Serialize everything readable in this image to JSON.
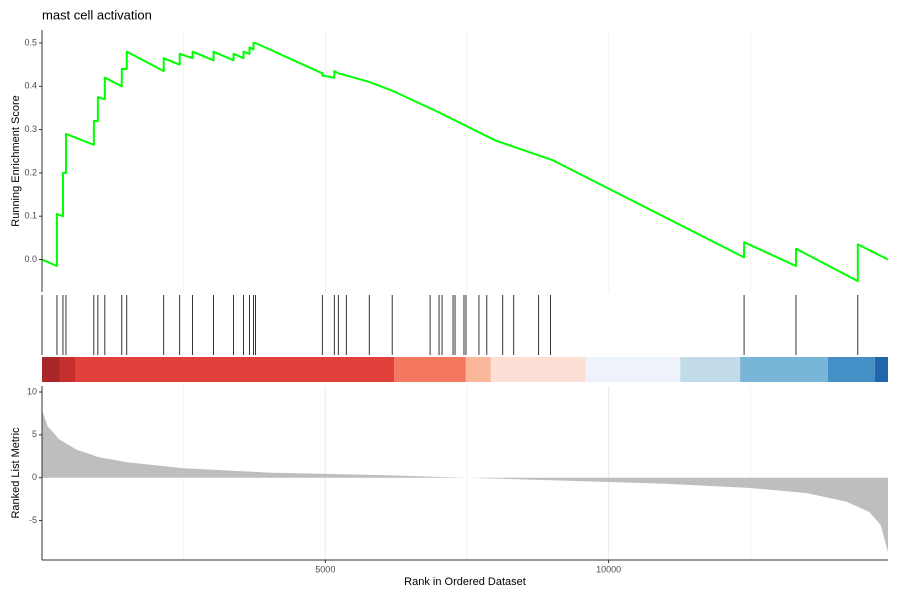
{
  "chart_data": [
    {
      "type": "line",
      "title": "mast cell activation",
      "ylabel": "Running Enrichment Score",
      "x": [
        0,
        264,
        264,
        370,
        370,
        423,
        423,
        915,
        915,
        986,
        986,
        1109,
        1109,
        1408,
        1408,
        1496,
        1496,
        2148,
        2148,
        2430,
        2430,
        2658,
        2658,
        3028,
        3028,
        3380,
        3380,
        3556,
        3556,
        3662,
        3662,
        3732,
        3732,
        3768,
        4947,
        4947,
        5158,
        5158,
        5229,
        5370,
        5775,
        6180,
        7000,
        8000,
        9000,
        12390,
        12390,
        13306,
        13306,
        14397,
        14397,
        14930
      ],
      "values": [
        0,
        -0.015,
        0.105,
        0.1,
        0.2,
        0.2,
        0.29,
        0.265,
        0.32,
        0.32,
        0.375,
        0.37,
        0.42,
        0.4,
        0.44,
        0.44,
        0.48,
        0.435,
        0.465,
        0.45,
        0.475,
        0.465,
        0.48,
        0.46,
        0.48,
        0.46,
        0.475,
        0.465,
        0.48,
        0.475,
        0.49,
        0.485,
        0.5,
        0.5,
        0.43,
        0.425,
        0.42,
        0.435,
        0.43,
        0.425,
        0.41,
        0.39,
        0.34,
        0.275,
        0.23,
        0.005,
        0.04,
        -0.015,
        0.025,
        -0.05,
        0.035,
        0
      ],
      "color": "#00ff00",
      "xlim": [
        0,
        14930
      ],
      "ylim": [
        -0.075,
        0.53
      ],
      "yticks": [
        {
          "value": 0,
          "label": "0.0"
        },
        0.1,
        0.2,
        0.3,
        0.4,
        0.5
      ],
      "xgrid": [
        2500,
        5000,
        7500,
        10000,
        12500
      ]
    },
    {
      "type": "rug",
      "x": [
        264,
        370,
        423,
        915,
        986,
        1109,
        1408,
        1496,
        2148,
        2430,
        2658,
        3028,
        3380,
        3556,
        3662,
        3732,
        3768,
        4947,
        5158,
        5229,
        5370,
        5775,
        6180,
        6849,
        7007,
        7060,
        7254,
        7289,
        7447,
        7482,
        7711,
        7850,
        8131,
        8325,
        8765,
        8976,
        12390,
        13306,
        14397
      ],
      "xlim": [
        0,
        14930
      ],
      "bands": [
        {
          "start": 0,
          "end": 317,
          "color": "#a9262b"
        },
        {
          "start": 317,
          "end": 598,
          "color": "#c5302f"
        },
        {
          "start": 598,
          "end": 6213,
          "color": "#e2403a"
        },
        {
          "start": 6213,
          "end": 7480,
          "color": "#f4775f"
        },
        {
          "start": 7480,
          "end": 7920,
          "color": "#fbb79b"
        },
        {
          "start": 7920,
          "end": 9592,
          "color": "#fde0d5"
        },
        {
          "start": 9592,
          "end": 11264,
          "color": "#eef3fb"
        },
        {
          "start": 11264,
          "end": 12320,
          "color": "#c2dbe9"
        },
        {
          "start": 12320,
          "end": 13869,
          "color": "#79b5d9"
        },
        {
          "start": 13869,
          "end": 14696,
          "color": "#4490c6"
        },
        {
          "start": 14696,
          "end": 14930,
          "color": "#2166ac"
        }
      ]
    },
    {
      "type": "area",
      "ylabel": "Ranked List Metric",
      "xlabel": "Rank in Ordered Dataset",
      "x": [
        0,
        100,
        300,
        600,
        1000,
        1500,
        2500,
        4000,
        6000,
        7500,
        9000,
        11000,
        12500,
        13500,
        14200,
        14600,
        14800,
        14930
      ],
      "values": [
        7.9,
        6,
        4.5,
        3.3,
        2.4,
        1.8,
        1.1,
        0.6,
        0.3,
        0,
        -0.3,
        -0.7,
        -1.2,
        -1.8,
        -2.8,
        -4,
        -5.5,
        -8.7
      ],
      "color": "#bebebe",
      "xlim": [
        0,
        14930
      ],
      "ylim": [
        -9.6,
        10.7
      ],
      "yticks": [
        -5,
        0,
        5,
        10
      ],
      "xticks": [
        5000,
        10000
      ],
      "xgrid": [
        2500,
        7500,
        12500
      ]
    }
  ]
}
